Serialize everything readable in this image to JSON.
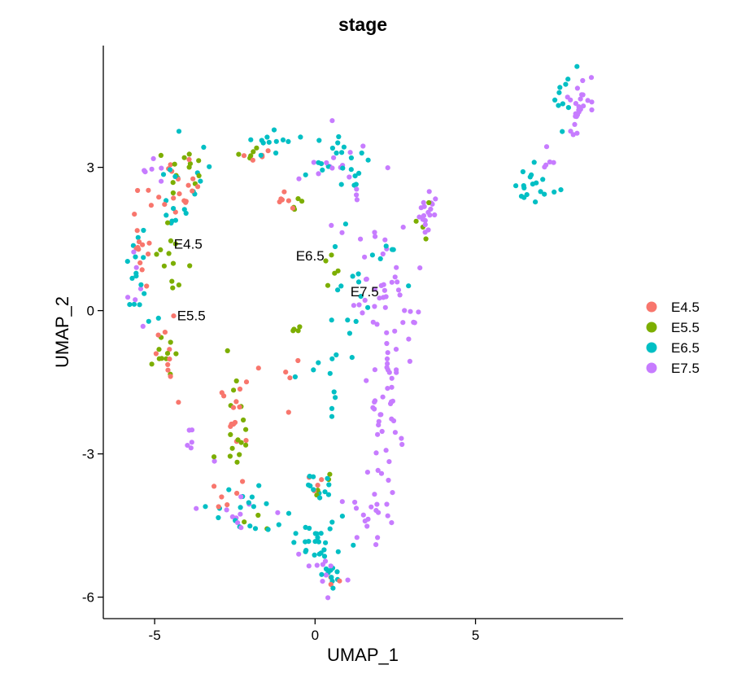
{
  "chart_data": {
    "type": "scatter",
    "title": "stage",
    "xlabel": "UMAP_1",
    "ylabel": "UMAP_2",
    "xlim": [
      -6.6,
      9.6
    ],
    "ylim": [
      -6.45,
      5.55
    ],
    "x_ticks": [
      {
        "value": -5,
        "label": "-5"
      },
      {
        "value": 0,
        "label": "0"
      },
      {
        "value": 5,
        "label": "5"
      }
    ],
    "y_ticks": [
      {
        "value": 3,
        "label": "3"
      },
      {
        "value": 0,
        "label": "0"
      },
      {
        "value": -3,
        "label": "-3"
      },
      {
        "value": -6,
        "label": "-6"
      }
    ],
    "grid": false,
    "legend_position": "right",
    "series": [
      {
        "name": "E4.5",
        "color": "#F8766D"
      },
      {
        "name": "E5.5",
        "color": "#7CAE00"
      },
      {
        "name": "E6.5",
        "color": "#00BFC4"
      },
      {
        "name": "E7.5",
        "color": "#C77CFF"
      }
    ],
    "annotations": [
      {
        "text": "E4.5",
        "x": -4.4,
        "y": 1.3
      },
      {
        "text": "E5.5",
        "x": -4.3,
        "y": -0.2
      },
      {
        "text": "E6.5",
        "x": -0.6,
        "y": 1.05
      },
      {
        "text": "E7.5",
        "x": 1.1,
        "y": 0.3
      }
    ],
    "regions": [
      {
        "series": 0,
        "n": 18,
        "cx": -4.3,
        "cy": 2.6,
        "sx": 0.7,
        "sy": 0.6
      },
      {
        "series": 0,
        "n": 14,
        "cx": -5.4,
        "cy": 1.2,
        "sx": 0.3,
        "sy": 0.8
      },
      {
        "series": 0,
        "n": 10,
        "cx": -4.6,
        "cy": -1.2,
        "sx": 0.4,
        "sy": 0.9
      },
      {
        "series": 0,
        "n": 14,
        "cx": -2.5,
        "cy": -2.3,
        "sx": 0.3,
        "sy": 0.9
      },
      {
        "series": 0,
        "n": 6,
        "cx": -2.7,
        "cy": -3.9,
        "sx": 0.4,
        "sy": 0.3
      },
      {
        "series": 0,
        "n": 6,
        "cx": -0.9,
        "cy": 2.3,
        "sx": 0.3,
        "sy": 0.2
      },
      {
        "series": 0,
        "n": 5,
        "cx": -1.8,
        "cy": 3.3,
        "sx": 0.4,
        "sy": 0.2
      },
      {
        "series": 0,
        "n": 5,
        "cx": -1.0,
        "cy": -1.2,
        "sx": 0.5,
        "sy": 0.6
      },
      {
        "series": 0,
        "n": 4,
        "cx": 0.1,
        "cy": -3.6,
        "sx": 0.3,
        "sy": 0.2
      },
      {
        "series": 0,
        "n": 3,
        "cx": 0.5,
        "cy": -5.6,
        "sx": 0.2,
        "sy": 0.2
      },
      {
        "series": 1,
        "n": 12,
        "cx": -4.5,
        "cy": 0.8,
        "sx": 0.5,
        "sy": 0.7
      },
      {
        "series": 1,
        "n": 10,
        "cx": -4.7,
        "cy": -0.9,
        "sx": 0.4,
        "sy": 0.4
      },
      {
        "series": 1,
        "n": 12,
        "cx": -4.1,
        "cy": 2.9,
        "sx": 0.7,
        "sy": 0.4
      },
      {
        "series": 1,
        "n": 16,
        "cx": -2.5,
        "cy": -2.5,
        "sx": 0.3,
        "sy": 1.0
      },
      {
        "series": 1,
        "n": 5,
        "cx": -1.9,
        "cy": 3.3,
        "sx": 0.4,
        "sy": 0.2
      },
      {
        "series": 1,
        "n": 4,
        "cx": -0.6,
        "cy": 2.3,
        "sx": 0.3,
        "sy": 0.2
      },
      {
        "series": 1,
        "n": 4,
        "cx": -0.6,
        "cy": -0.4,
        "sx": 0.4,
        "sy": 0.4
      },
      {
        "series": 1,
        "n": 5,
        "cx": 0.5,
        "cy": 0.8,
        "sx": 0.4,
        "sy": 0.3
      },
      {
        "series": 1,
        "n": 4,
        "cx": 3.2,
        "cy": 1.8,
        "sx": 0.3,
        "sy": 0.4
      },
      {
        "series": 1,
        "n": 4,
        "cx": 0.0,
        "cy": -3.5,
        "sx": 0.3,
        "sy": 0.3
      },
      {
        "series": 1,
        "n": 3,
        "cx": -1.8,
        "cy": -4.5,
        "sx": 0.3,
        "sy": 0.2
      },
      {
        "series": 2,
        "n": 20,
        "cx": -4.2,
        "cy": 2.6,
        "sx": 1.0,
        "sy": 0.9
      },
      {
        "series": 2,
        "n": 15,
        "cx": -5.5,
        "cy": 0.4,
        "sx": 0.4,
        "sy": 1.0
      },
      {
        "series": 2,
        "n": 12,
        "cx": -1.2,
        "cy": 3.5,
        "sx": 1.1,
        "sy": 0.3
      },
      {
        "series": 2,
        "n": 22,
        "cx": 0.9,
        "cy": 3.2,
        "sx": 0.8,
        "sy": 0.5
      },
      {
        "series": 2,
        "n": 14,
        "cx": 1.0,
        "cy": 0.4,
        "sx": 0.6,
        "sy": 1.0
      },
      {
        "series": 2,
        "n": 10,
        "cx": 0.3,
        "cy": -1.5,
        "sx": 0.6,
        "sy": 1.0
      },
      {
        "series": 2,
        "n": 16,
        "cx": -2.2,
        "cy": -4.1,
        "sx": 1.0,
        "sy": 0.5
      },
      {
        "series": 2,
        "n": 28,
        "cx": 0.0,
        "cy": -4.8,
        "sx": 0.8,
        "sy": 0.6
      },
      {
        "series": 2,
        "n": 10,
        "cx": 0.5,
        "cy": -5.6,
        "sx": 0.4,
        "sy": 0.2
      },
      {
        "series": 2,
        "n": 10,
        "cx": 0.2,
        "cy": -3.6,
        "sx": 0.4,
        "sy": 0.3
      },
      {
        "series": 2,
        "n": 18,
        "cx": 6.9,
        "cy": 2.6,
        "sx": 0.8,
        "sy": 0.3
      },
      {
        "series": 2,
        "n": 10,
        "cx": 7.7,
        "cy": 4.3,
        "sx": 0.3,
        "sy": 0.4
      },
      {
        "series": 2,
        "n": 6,
        "cx": 2.5,
        "cy": 1.0,
        "sx": 0.5,
        "sy": 0.5
      },
      {
        "series": 3,
        "n": 35,
        "cx": 2.2,
        "cy": 0.2,
        "sx": 0.8,
        "sy": 0.9
      },
      {
        "series": 3,
        "n": 40,
        "cx": 2.2,
        "cy": -2.0,
        "sx": 0.5,
        "sy": 1.2
      },
      {
        "series": 3,
        "n": 20,
        "cx": 1.6,
        "cy": -4.3,
        "sx": 0.7,
        "sy": 0.6
      },
      {
        "series": 3,
        "n": 18,
        "cx": 3.5,
        "cy": 2.1,
        "sx": 0.2,
        "sy": 0.4
      },
      {
        "series": 3,
        "n": 25,
        "cx": 8.2,
        "cy": 4.2,
        "sx": 0.4,
        "sy": 0.6
      },
      {
        "series": 3,
        "n": 5,
        "cx": 7.2,
        "cy": 3.1,
        "sx": 0.3,
        "sy": 0.4
      },
      {
        "series": 3,
        "n": 18,
        "cx": 0.7,
        "cy": 2.9,
        "sx": 1.0,
        "sy": 0.7
      },
      {
        "series": 3,
        "n": 10,
        "cx": 0.3,
        "cy": -5.3,
        "sx": 0.6,
        "sy": 0.4
      },
      {
        "series": 3,
        "n": 10,
        "cx": -2.6,
        "cy": -4.2,
        "sx": 1.0,
        "sy": 0.4
      },
      {
        "series": 3,
        "n": 6,
        "cx": -3.8,
        "cy": -2.9,
        "sx": 0.5,
        "sy": 0.4
      },
      {
        "series": 3,
        "n": 6,
        "cx": -5.3,
        "cy": 3.0,
        "sx": 0.6,
        "sy": 0.3
      },
      {
        "series": 3,
        "n": 6,
        "cx": -5.6,
        "cy": 0.6,
        "sx": 0.3,
        "sy": 0.6
      },
      {
        "series": 3,
        "n": 8,
        "cx": 1.5,
        "cy": 1.5,
        "sx": 1.2,
        "sy": 0.4
      }
    ]
  }
}
